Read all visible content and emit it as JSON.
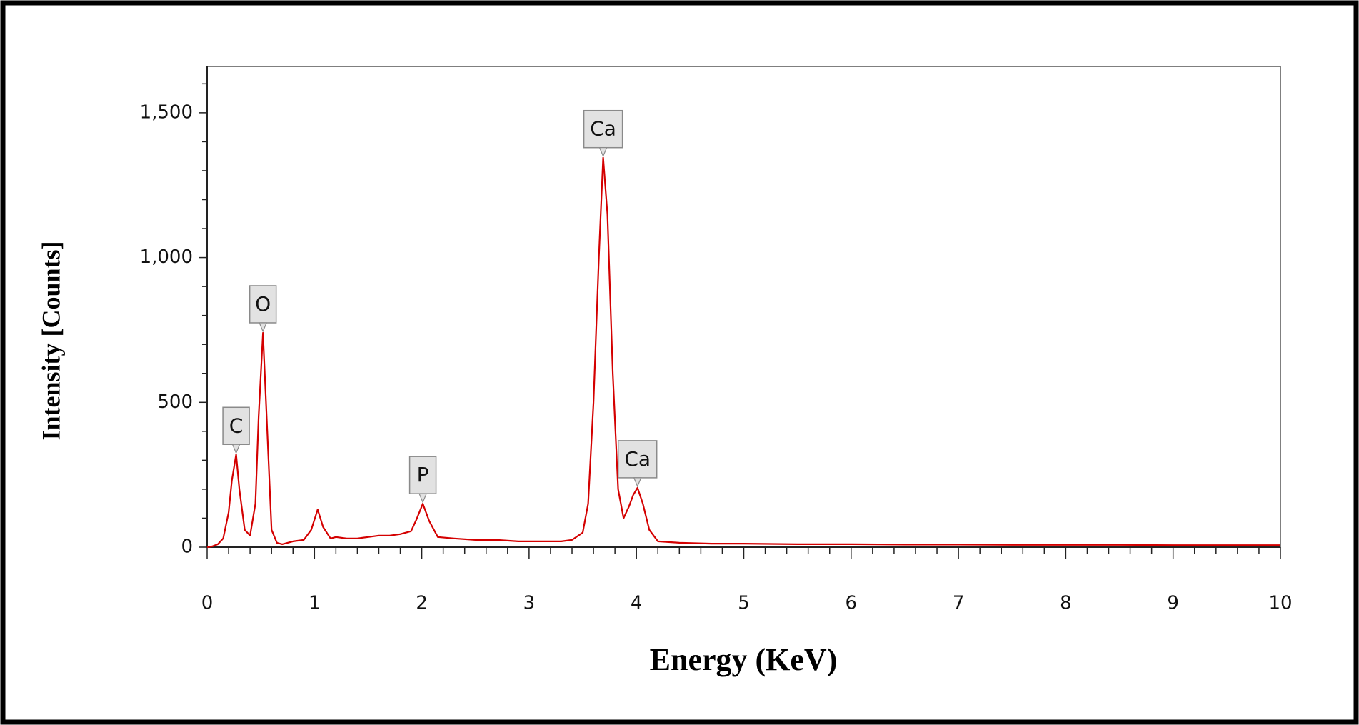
{
  "chart_data": {
    "type": "line",
    "xlabel": "Energy (KeV)",
    "ylabel": "Intensity [Counts]",
    "x": [
      0,
      0.05,
      0.1,
      0.15,
      0.2,
      0.23,
      0.27,
      0.3,
      0.35,
      0.4,
      0.45,
      0.48,
      0.52,
      0.56,
      0.6,
      0.65,
      0.7,
      0.8,
      0.9,
      0.97,
      1.03,
      1.08,
      1.15,
      1.2,
      1.3,
      1.4,
      1.5,
      1.6,
      1.7,
      1.8,
      1.9,
      1.95,
      2.01,
      2.07,
      2.15,
      2.3,
      2.5,
      2.7,
      2.9,
      3.1,
      3.3,
      3.4,
      3.5,
      3.55,
      3.6,
      3.65,
      3.69,
      3.73,
      3.78,
      3.83,
      3.88,
      3.93,
      3.97,
      4.01,
      4.06,
      4.12,
      4.2,
      4.4,
      4.7,
      5,
      5.5,
      6,
      6.5,
      7,
      7.5,
      8,
      8.5,
      9,
      9.5,
      10
    ],
    "series": [
      {
        "color": "#d40000",
        "values": [
          0,
          3,
          10,
          30,
          120,
          230,
          320,
          200,
          60,
          40,
          150,
          450,
          740,
          400,
          60,
          15,
          10,
          20,
          25,
          60,
          130,
          70,
          30,
          35,
          30,
          30,
          35,
          40,
          40,
          45,
          55,
          95,
          150,
          90,
          35,
          30,
          25,
          25,
          20,
          20,
          20,
          25,
          50,
          150,
          500,
          1000,
          1345,
          1150,
          600,
          200,
          100,
          140,
          180,
          205,
          150,
          60,
          20,
          15,
          12,
          12,
          10,
          10,
          9,
          9,
          8,
          8,
          8,
          7,
          7,
          7
        ]
      }
    ],
    "xlim": [
      0,
      10
    ],
    "xticks": [
      0,
      1,
      2,
      3,
      4,
      5,
      6,
      7,
      8,
      9,
      10
    ],
    "ylim": [
      0,
      1660
    ],
    "yticks": [
      0,
      500,
      {
        "value": 1000,
        "label": "1,000"
      },
      {
        "value": 1500,
        "label": "1,500"
      }
    ],
    "annotations": [
      {
        "text": "C",
        "x": 0.27,
        "y": 320
      },
      {
        "text": "O",
        "x": 0.52,
        "y": 740
      },
      {
        "text": "P",
        "x": 2.01,
        "y": 150
      },
      {
        "text": "Ca",
        "x": 3.69,
        "y": 1345
      },
      {
        "text": "Ca",
        "x": 4.01,
        "y": 205
      }
    ]
  }
}
